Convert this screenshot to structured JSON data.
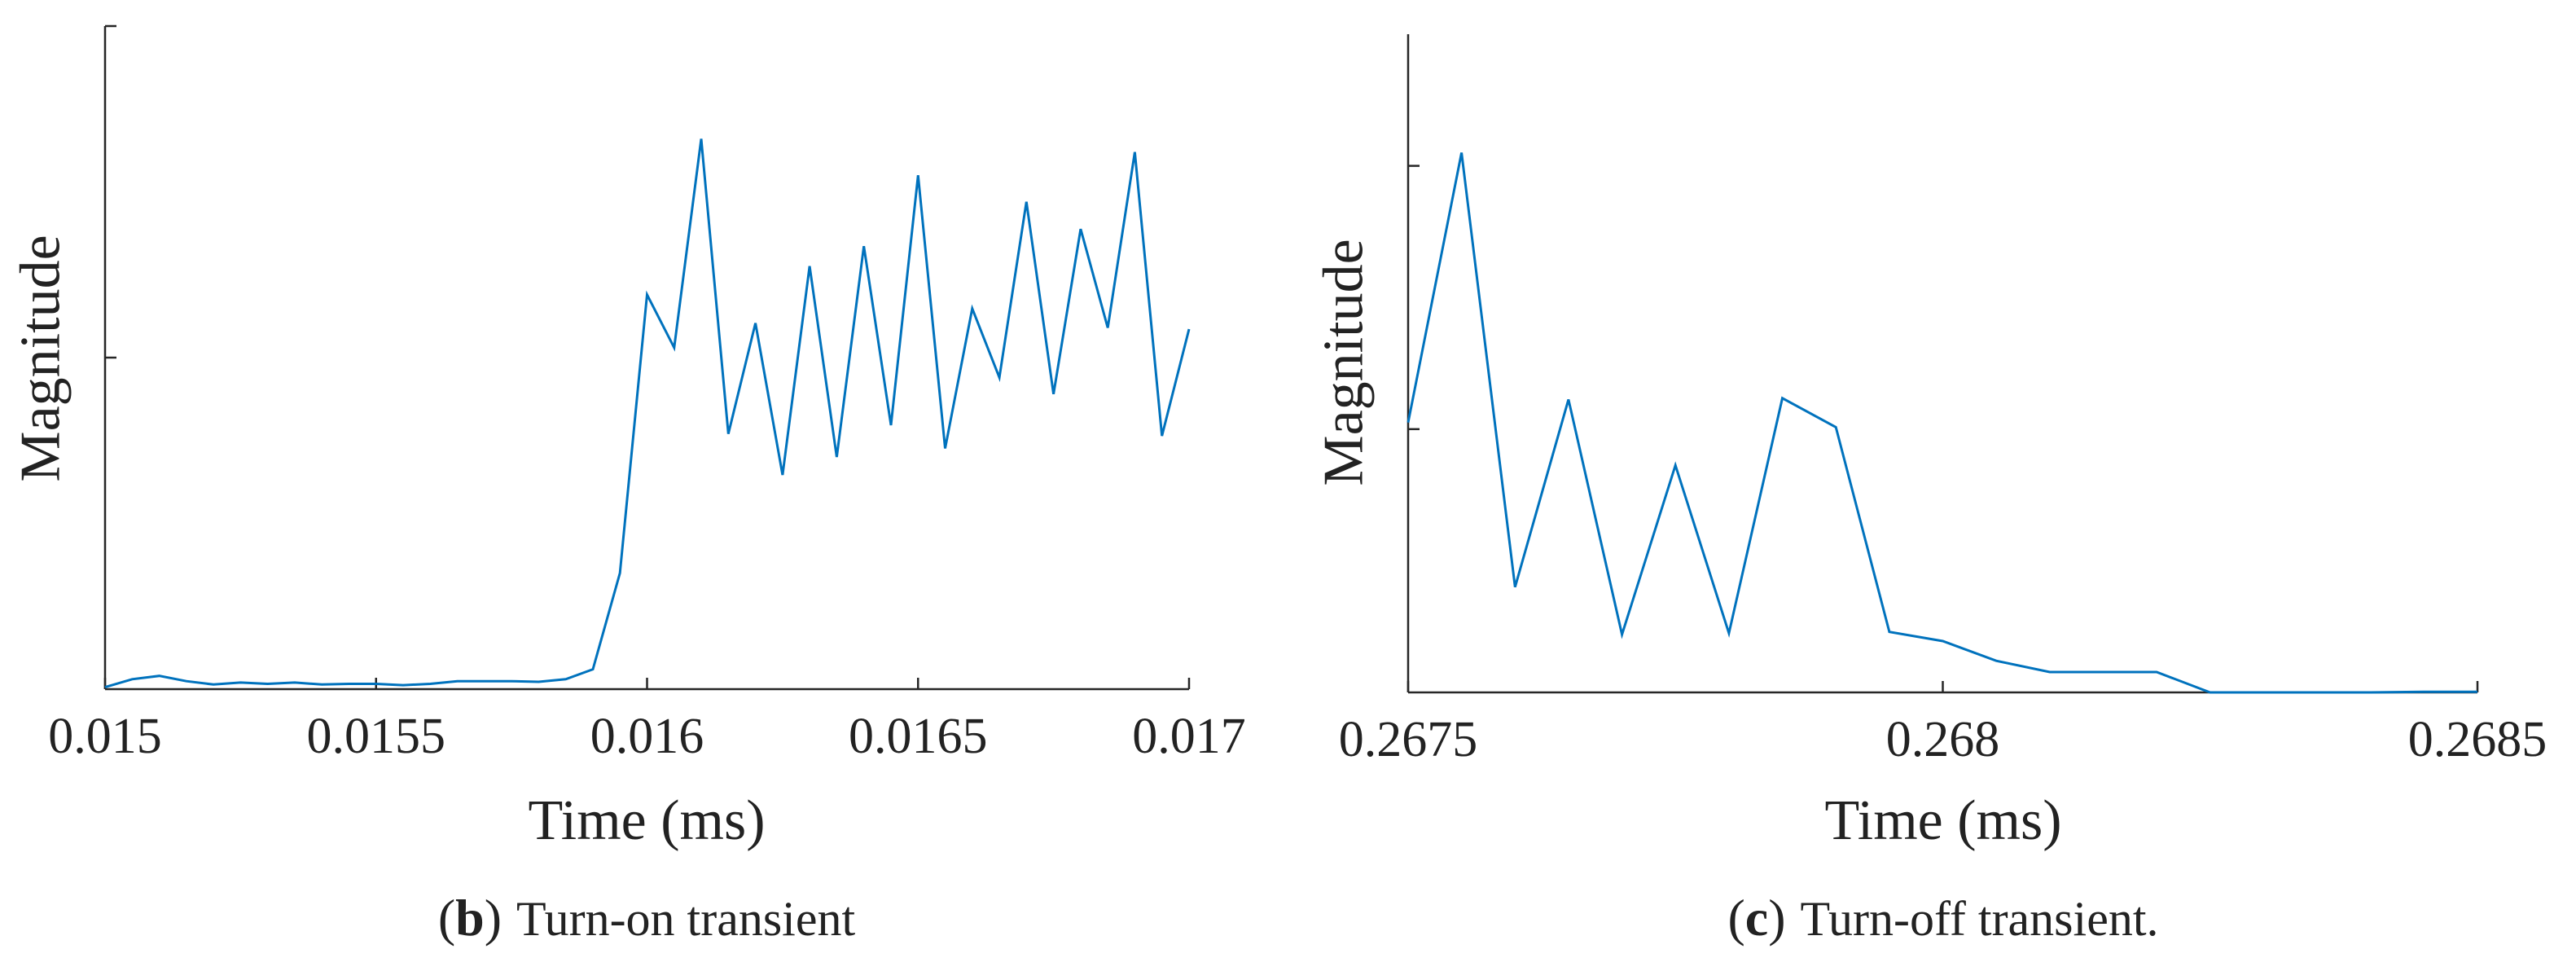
{
  "chart_data": [
    {
      "type": "line",
      "caption_letter": "b",
      "caption_text": "Turn-on transient",
      "xlabel": "Time (ms)",
      "ylabel": "Magnitude",
      "xlim": [
        0.015,
        0.017
      ],
      "ylim": [
        0,
        1
      ],
      "x_ticks": [
        0.015,
        0.0155,
        0.016,
        0.0165,
        0.017
      ],
      "x_tick_labels": [
        "0.015",
        "0.0155",
        "0.016",
        "0.0165",
        "0.017"
      ],
      "y_ticks": [
        0.5,
        1.0
      ],
      "y_tick_labels": [
        "",
        ""
      ],
      "grid": false,
      "color": "#0072BD",
      "series": [
        {
          "x": [
            0.015,
            0.01505,
            0.0151,
            0.01515,
            0.0152,
            0.01525,
            0.0153,
            0.01535,
            0.0154,
            0.01545,
            0.0155,
            0.01555,
            0.0156,
            0.01565,
            0.0157,
            0.01575,
            0.0158,
            0.01585,
            0.0159,
            0.01595,
            0.016,
            0.01605,
            0.0161,
            0.01615,
            0.0162,
            0.01625,
            0.0163,
            0.01635,
            0.0164,
            0.01645,
            0.0165,
            0.01655,
            0.0166,
            0.01665,
            0.0167,
            0.01675,
            0.0168,
            0.01685,
            0.0169,
            0.01695,
            0.017
          ],
          "y": [
            0.003,
            0.015,
            0.02,
            0.012,
            0.007,
            0.01,
            0.008,
            0.01,
            0.007,
            0.008,
            0.008,
            0.006,
            0.008,
            0.012,
            0.012,
            0.012,
            0.011,
            0.015,
            0.03,
            0.175,
            0.595,
            0.515,
            0.83,
            0.385,
            0.552,
            0.323,
            0.638,
            0.35,
            0.668,
            0.398,
            0.775,
            0.363,
            0.574,
            0.47,
            0.735,
            0.445,
            0.694,
            0.545,
            0.81,
            0.382,
            0.543
          ]
        }
      ]
    },
    {
      "type": "line",
      "caption_letter": "c",
      "caption_text": "Turn-off transient.",
      "xlabel": "Time (ms)",
      "ylabel": "Magnitude",
      "xlim": [
        0.2675,
        0.2685
      ],
      "ylim": [
        0,
        1
      ],
      "x_ticks": [
        0.2675,
        0.268,
        0.2685
      ],
      "x_tick_labels": [
        "0.2675",
        "0.268",
        "0.2685"
      ],
      "y_ticks": [
        0.4,
        0.8
      ],
      "y_tick_labels": [
        "",
        ""
      ],
      "grid": false,
      "color": "#0072BD",
      "series": [
        {
          "x": [
            0.2675,
            0.26755,
            0.2676,
            0.26765,
            0.2677,
            0.26775,
            0.2678,
            0.26785,
            0.2679,
            0.26795,
            0.268,
            0.26805,
            0.2681,
            0.26815,
            0.2682,
            0.26825,
            0.2683,
            0.26835,
            0.2684,
            0.26845,
            0.2685
          ],
          "y": [
            0.41,
            0.82,
            0.16,
            0.445,
            0.088,
            0.345,
            0.09,
            0.447,
            0.403,
            0.092,
            0.078,
            0.048,
            0.031,
            0.031,
            0.031,
            0.0,
            0.0,
            0.0,
            0.0,
            0.001,
            0.001
          ]
        }
      ]
    }
  ]
}
